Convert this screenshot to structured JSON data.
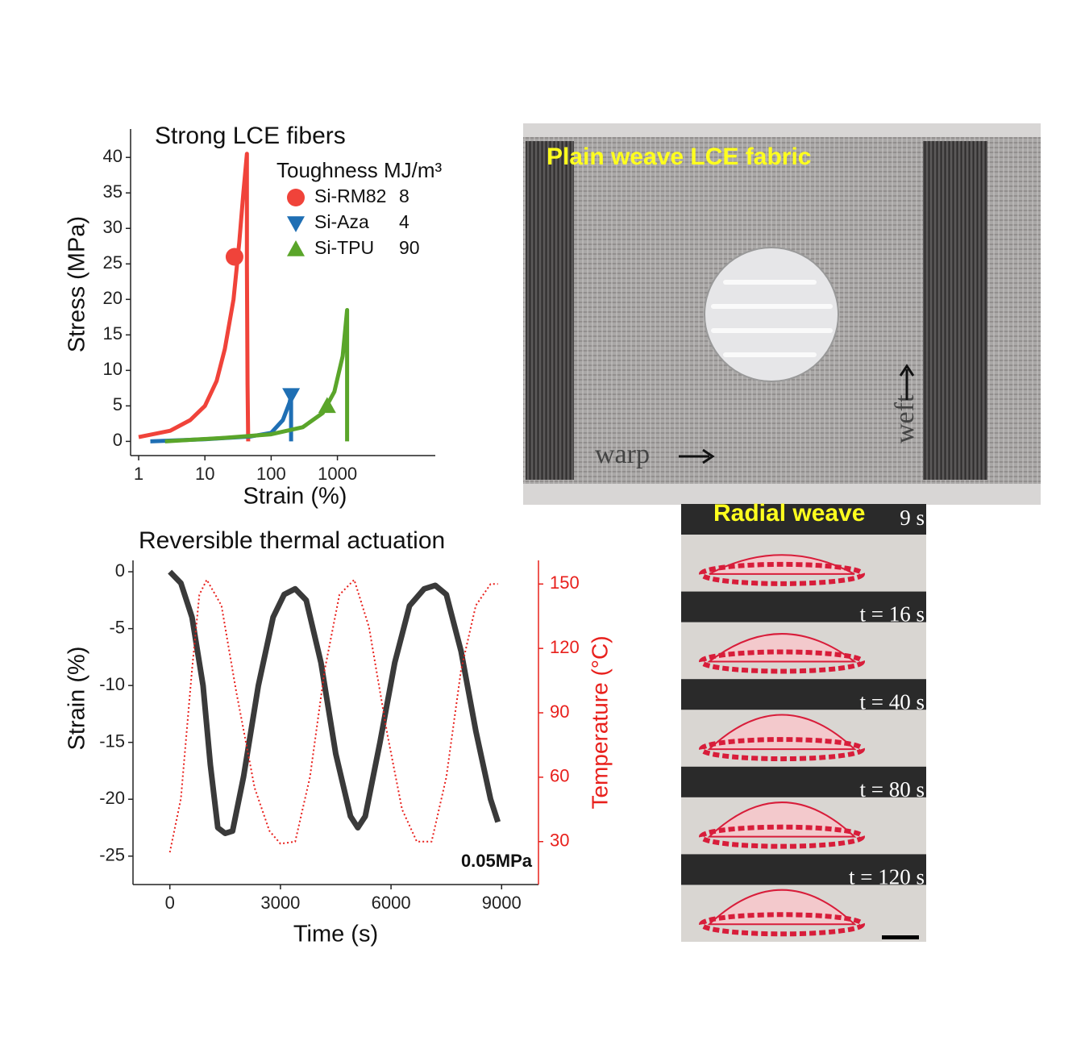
{
  "chart_data": [
    {
      "type": "line",
      "title": "Strong LCE fibers",
      "xlabel": "Strain (%)",
      "ylabel": "Stress (MPa)",
      "xscale": "log",
      "xlim": [
        1,
        30000
      ],
      "xticks": [
        1,
        10,
        100,
        1000
      ],
      "ylim": [
        -2,
        44
      ],
      "yticks": [
        0,
        5,
        10,
        15,
        20,
        25,
        30,
        35,
        40
      ],
      "legend_title": "Toughness MJ/m³",
      "series": [
        {
          "name": "Si-RM82",
          "toughness": 8,
          "color": "#f0433a",
          "x": [
            1,
            3,
            6,
            10,
            15,
            20,
            27,
            33,
            38,
            43,
            43,
            44,
            45
          ],
          "values": [
            0.6,
            1.5,
            3,
            5,
            8.5,
            13,
            20,
            28,
            35,
            40.5,
            25,
            8,
            0
          ],
          "marker": {
            "x": 28,
            "y": 26,
            "shape": "circle"
          }
        },
        {
          "name": "Si-Aza",
          "toughness": 4,
          "color": "#1f6fb4",
          "x": [
            1.5,
            10,
            50,
            100,
            150,
            190,
            200,
            200
          ],
          "values": [
            0,
            0.3,
            0.7,
            1.2,
            3,
            5.5,
            6.5,
            0
          ],
          "marker": {
            "x": 200,
            "y": 6.5,
            "shape": "triangle-down"
          }
        },
        {
          "name": "Si-TPU",
          "toughness": 90,
          "color": "#5aa52a",
          "x": [
            2.5,
            20,
            100,
            300,
            600,
            900,
            1200,
            1400,
            1400
          ],
          "values": [
            0,
            0.5,
            1,
            2,
            4,
            7,
            12,
            18.5,
            0
          ],
          "marker": {
            "x": 700,
            "y": 5,
            "shape": "triangle-up"
          }
        }
      ]
    },
    {
      "type": "line",
      "title": "Reversible thermal actuation",
      "xlabel": "Time (s)",
      "ylabel": "Strain (%)",
      "y2label": "Temperature (°C)",
      "annotation": "0.05MPa",
      "xlim": [
        -1000,
        10000
      ],
      "xticks": [
        0,
        3000,
        6000,
        9000
      ],
      "ylim": [
        -27.5,
        1
      ],
      "yticks": [
        0,
        -5,
        -10,
        -15,
        -20,
        -25
      ],
      "y2lim": [
        10,
        161
      ],
      "y2ticks": [
        30,
        60,
        90,
        120,
        150
      ],
      "series": [
        {
          "name": "Strain",
          "color": "#3a3a3a",
          "style": "solid",
          "x": [
            0,
            300,
            600,
            900,
            1100,
            1300,
            1500,
            1700,
            2000,
            2400,
            2800,
            3100,
            3400,
            3700,
            4100,
            4500,
            4900,
            5100,
            5300,
            5700,
            6100,
            6500,
            6900,
            7200,
            7500,
            7900,
            8300,
            8700,
            8900
          ],
          "values": [
            0,
            -1,
            -4,
            -10,
            -17,
            -22.5,
            -23,
            -22.8,
            -18,
            -10,
            -4,
            -2,
            -1.5,
            -2.5,
            -8,
            -16,
            -21.5,
            -22.5,
            -21.5,
            -15,
            -8,
            -3,
            -1.5,
            -1.2,
            -2,
            -7,
            -14,
            -20,
            -22
          ]
        },
        {
          "name": "Temperature",
          "color": "#e8201c",
          "style": "dotted",
          "axis": "y2",
          "x": [
            0,
            300,
            600,
            800,
            1000,
            1400,
            1800,
            2300,
            2700,
            3000,
            3400,
            3800,
            4200,
            4600,
            5000,
            5400,
            5900,
            6300,
            6700,
            7100,
            7500,
            7900,
            8300,
            8700,
            8900
          ],
          "values": [
            25,
            50,
            110,
            145,
            152,
            140,
            100,
            55,
            35,
            29,
            30,
            60,
            110,
            145,
            152,
            130,
            80,
            45,
            30,
            30,
            60,
            110,
            140,
            150,
            150
          ]
        }
      ]
    }
  ],
  "photos": {
    "fabric": {
      "title": "Plain weave LCE fabric",
      "warp": "warp",
      "weft": "weft"
    },
    "radial": {
      "title": "Radial weave",
      "frames": [
        "9 s",
        "t = 16 s",
        "t = 40 s",
        "t = 80 s",
        "t = 120 s"
      ]
    }
  }
}
